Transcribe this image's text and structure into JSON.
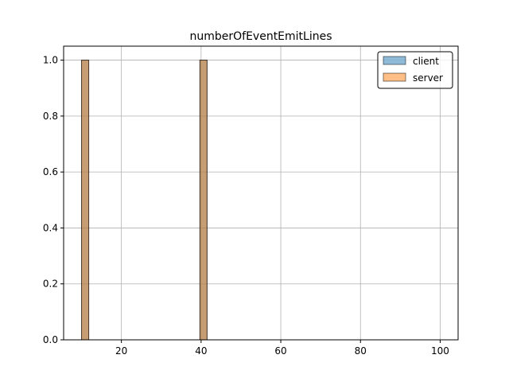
{
  "chart_data": {
    "type": "bar",
    "title": "numberOfEventEmitLines",
    "xlabel": "",
    "ylabel": "",
    "xlim": [
      5.5,
      104.5
    ],
    "ylim": [
      0,
      1.05
    ],
    "xticks": [
      20,
      40,
      60,
      80,
      100
    ],
    "yticks": [
      0.0,
      0.2,
      0.4,
      0.6,
      0.8,
      1.0
    ],
    "xtick_labels": [
      "20",
      "40",
      "60",
      "80",
      "100"
    ],
    "ytick_labels": [
      "0.0",
      "0.2",
      "0.4",
      "0.6",
      "0.8",
      "1.0"
    ],
    "grid": true,
    "legend_position": "top-right",
    "series": [
      {
        "name": "client",
        "color": "#1f77b4",
        "bins": [
          {
            "x0": 10,
            "x1": 11.8,
            "value": 1
          },
          {
            "x0": 39.7,
            "x1": 41.5,
            "value": 1
          }
        ]
      },
      {
        "name": "server",
        "color": "#ff7f0e",
        "bins": [
          {
            "x0": 10,
            "x1": 11.8,
            "value": 1
          },
          {
            "x0": 39.7,
            "x1": 41.5,
            "value": 1
          }
        ]
      }
    ]
  }
}
